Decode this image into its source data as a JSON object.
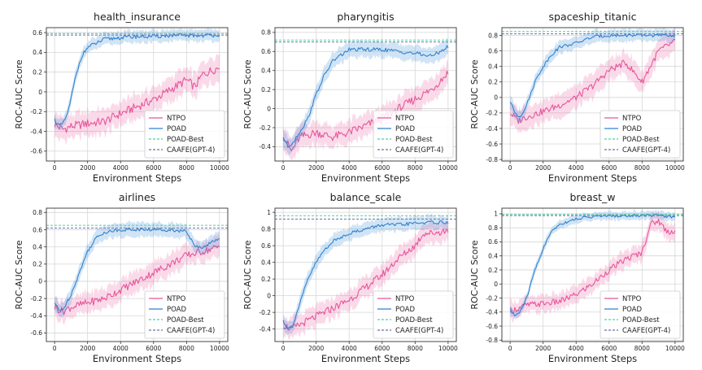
{
  "colors": {
    "ntpo": "#e8559b",
    "poad": "#2f82d0",
    "poad_best": "#4fcfa0",
    "caafe": "#6d6fa8",
    "grid": "#d6d6d6",
    "axis": "#333333"
  },
  "chart_data": [
    {
      "type": "line",
      "title": "health_insurance",
      "xlabel": "Environment Steps",
      "ylabel": "ROC-AUC Score",
      "xlim": [
        -500,
        10500
      ],
      "ylim": [
        -0.7,
        0.65
      ],
      "xticks": [
        0,
        2000,
        4000,
        6000,
        8000,
        10000
      ],
      "yticks": [
        -0.6,
        -0.4,
        -0.2,
        0.0,
        0.2,
        0.4,
        0.6
      ],
      "grid": true,
      "legend_position": "bottom-right",
      "series": [
        {
          "name": "NTPO",
          "x": [
            0,
            500,
            1000,
            2000,
            3000,
            4000,
            5000,
            6000,
            7000,
            8000,
            8500,
            9000,
            10000
          ],
          "values": [
            -0.33,
            -0.38,
            -0.35,
            -0.32,
            -0.3,
            -0.22,
            -0.15,
            -0.08,
            0.02,
            0.12,
            0.05,
            0.18,
            0.25
          ],
          "band": 0.12
        },
        {
          "name": "POAD",
          "x": [
            0,
            300,
            600,
            900,
            1200,
            1600,
            2000,
            3000,
            4000,
            5000,
            6000,
            7000,
            8000,
            9000,
            10000
          ],
          "values": [
            -0.28,
            -0.35,
            -0.3,
            -0.15,
            0.1,
            0.35,
            0.45,
            0.53,
            0.55,
            0.56,
            0.56,
            0.57,
            0.57,
            0.57,
            0.58
          ],
          "band": 0.06
        },
        {
          "name": "POAD-Best",
          "value": 0.59
        },
        {
          "name": "CAAFE(GPT-4)",
          "value": 0.575
        }
      ]
    },
    {
      "type": "line",
      "title": "pharyngitis",
      "xlabel": "Environment Steps",
      "ylabel": "ROC-AUC Score",
      "xlim": [
        -500,
        10500
      ],
      "ylim": [
        -0.55,
        0.85
      ],
      "xticks": [
        0,
        2000,
        4000,
        6000,
        8000,
        10000
      ],
      "yticks": [
        -0.4,
        -0.2,
        0.0,
        0.2,
        0.4,
        0.6,
        0.8
      ],
      "grid": true,
      "legend_position": "bottom-right",
      "series": [
        {
          "name": "NTPO",
          "x": [
            0,
            500,
            1000,
            2000,
            3000,
            4000,
            5000,
            6000,
            7000,
            8000,
            9000,
            10000
          ],
          "values": [
            -0.28,
            -0.45,
            -0.3,
            -0.25,
            -0.3,
            -0.25,
            -0.18,
            -0.1,
            0.0,
            0.1,
            0.2,
            0.38
          ],
          "band": 0.12
        },
        {
          "name": "POAD",
          "x": [
            0,
            300,
            600,
            1000,
            1500,
            2000,
            2500,
            3000,
            4000,
            5000,
            6000,
            7000,
            8000,
            9000,
            10000
          ],
          "values": [
            -0.3,
            -0.4,
            -0.35,
            -0.25,
            -0.1,
            0.15,
            0.35,
            0.5,
            0.62,
            0.62,
            0.62,
            0.6,
            0.58,
            0.55,
            0.65
          ],
          "band": 0.08
        },
        {
          "name": "POAD-Best",
          "value": 0.72
        },
        {
          "name": "CAAFE(GPT-4)",
          "value": 0.7
        }
      ]
    },
    {
      "type": "line",
      "title": "spaceship_titanic",
      "xlabel": "Environment Steps",
      "ylabel": "ROC-AUC Score",
      "xlim": [
        -500,
        10500
      ],
      "ylim": [
        -0.82,
        0.9
      ],
      "xticks": [
        0,
        2000,
        4000,
        6000,
        8000,
        10000
      ],
      "yticks": [
        -0.8,
        -0.6,
        -0.4,
        -0.2,
        0.0,
        0.2,
        0.4,
        0.6,
        0.8
      ],
      "grid": true,
      "legend_position": "bottom-right",
      "series": [
        {
          "name": "NTPO",
          "x": [
            0,
            500,
            1000,
            2000,
            3000,
            4000,
            5000,
            6000,
            7000,
            8000,
            8500,
            9000,
            10000
          ],
          "values": [
            -0.2,
            -0.3,
            -0.25,
            -0.18,
            -0.1,
            0.0,
            0.15,
            0.35,
            0.45,
            0.2,
            0.4,
            0.6,
            0.72
          ],
          "band": 0.15
        },
        {
          "name": "POAD",
          "x": [
            0,
            300,
            600,
            1000,
            1500,
            2000,
            2500,
            3000,
            4000,
            5000,
            6000,
            7000,
            8000,
            9000,
            10000
          ],
          "values": [
            -0.05,
            -0.2,
            -0.25,
            -0.1,
            0.2,
            0.4,
            0.55,
            0.65,
            0.7,
            0.78,
            0.8,
            0.8,
            0.8,
            0.8,
            0.8
          ],
          "band": 0.08
        },
        {
          "name": "POAD-Best",
          "value": 0.85
        },
        {
          "name": "CAAFE(GPT-4)",
          "value": 0.82
        }
      ]
    },
    {
      "type": "line",
      "title": "airlines",
      "xlabel": "Environment Steps",
      "ylabel": "ROC-AUC Score",
      "xlim": [
        -500,
        10500
      ],
      "ylim": [
        -0.7,
        0.85
      ],
      "xticks": [
        0,
        2000,
        4000,
        6000,
        8000,
        10000
      ],
      "yticks": [
        -0.6,
        -0.4,
        -0.2,
        0.0,
        0.2,
        0.4,
        0.6,
        0.8
      ],
      "grid": true,
      "legend_position": "bottom-right",
      "series": [
        {
          "name": "NTPO",
          "x": [
            0,
            500,
            1000,
            2000,
            3000,
            4000,
            5000,
            6000,
            7000,
            8000,
            9000,
            10000
          ],
          "values": [
            -0.3,
            -0.35,
            -0.3,
            -0.25,
            -0.2,
            -0.1,
            0.0,
            0.1,
            0.2,
            0.3,
            0.35,
            0.4
          ],
          "band": 0.12
        },
        {
          "name": "POAD",
          "x": [
            0,
            300,
            600,
            1000,
            1500,
            2000,
            2500,
            3000,
            4000,
            5000,
            6000,
            7000,
            8000,
            8500,
            9000,
            10000
          ],
          "values": [
            -0.25,
            -0.35,
            -0.3,
            -0.15,
            0.1,
            0.35,
            0.5,
            0.57,
            0.6,
            0.6,
            0.6,
            0.6,
            0.58,
            0.4,
            0.4,
            0.5
          ],
          "band": 0.08
        },
        {
          "name": "POAD-Best",
          "value": 0.65
        },
        {
          "name": "CAAFE(GPT-4)",
          "value": 0.62
        }
      ]
    },
    {
      "type": "line",
      "title": "balance_scale",
      "xlabel": "Environment Steps",
      "ylabel": "ROC-AUC Score",
      "xlim": [
        -500,
        10500
      ],
      "ylim": [
        -0.55,
        1.05
      ],
      "xticks": [
        0,
        2000,
        4000,
        6000,
        8000,
        10000
      ],
      "yticks": [
        -0.4,
        -0.2,
        0.0,
        0.2,
        0.4,
        0.6,
        0.8,
        1.0
      ],
      "grid": true,
      "legend_position": "bottom-right",
      "series": [
        {
          "name": "NTPO",
          "x": [
            0,
            500,
            1000,
            2000,
            3000,
            4000,
            5000,
            6000,
            7000,
            8000,
            8500,
            9000,
            10000
          ],
          "values": [
            -0.35,
            -0.4,
            -0.35,
            -0.25,
            -0.15,
            -0.05,
            0.1,
            0.25,
            0.45,
            0.6,
            0.75,
            0.75,
            0.78
          ],
          "band": 0.12
        },
        {
          "name": "POAD",
          "x": [
            0,
            300,
            600,
            1000,
            1500,
            2000,
            2500,
            3000,
            4000,
            5000,
            6000,
            7000,
            8000,
            9000,
            10000
          ],
          "values": [
            -0.3,
            -0.4,
            -0.35,
            -0.1,
            0.2,
            0.4,
            0.55,
            0.65,
            0.75,
            0.8,
            0.85,
            0.85,
            0.87,
            0.88,
            0.88
          ],
          "band": 0.08
        },
        {
          "name": "POAD-Best",
          "value": 0.96
        },
        {
          "name": "CAAFE(GPT-4)",
          "value": 0.92
        }
      ]
    },
    {
      "type": "line",
      "title": "breast_w",
      "xlabel": "Environment Steps",
      "ylabel": "ROC-AUC Score",
      "xlim": [
        -500,
        10500
      ],
      "ylim": [
        -0.82,
        1.08
      ],
      "xticks": [
        0,
        2000,
        4000,
        6000,
        8000,
        10000
      ],
      "yticks": [
        -0.8,
        -0.6,
        -0.4,
        -0.2,
        0.0,
        0.2,
        0.4,
        0.6,
        0.8,
        1.0
      ],
      "grid": true,
      "legend_position": "bottom-right",
      "series": [
        {
          "name": "NTPO",
          "x": [
            0,
            500,
            1000,
            2000,
            3000,
            4000,
            5000,
            6000,
            7000,
            8000,
            8500,
            9000,
            9500,
            10000
          ],
          "values": [
            -0.38,
            -0.35,
            -0.3,
            -0.28,
            -0.25,
            -0.15,
            0.0,
            0.2,
            0.35,
            0.45,
            0.85,
            0.9,
            0.75,
            0.75
          ],
          "band": 0.12
        },
        {
          "name": "POAD",
          "x": [
            0,
            300,
            600,
            1000,
            1500,
            2000,
            2500,
            3000,
            4000,
            5000,
            6000,
            7000,
            8000,
            9000,
            10000
          ],
          "values": [
            -0.38,
            -0.45,
            -0.4,
            -0.2,
            0.2,
            0.5,
            0.75,
            0.85,
            0.93,
            0.96,
            0.97,
            0.97,
            0.98,
            0.98,
            0.95
          ],
          "band": 0.06
        },
        {
          "name": "POAD-Best",
          "value": 0.99
        },
        {
          "name": "CAAFE(GPT-4)",
          "value": 0.975
        }
      ]
    }
  ]
}
